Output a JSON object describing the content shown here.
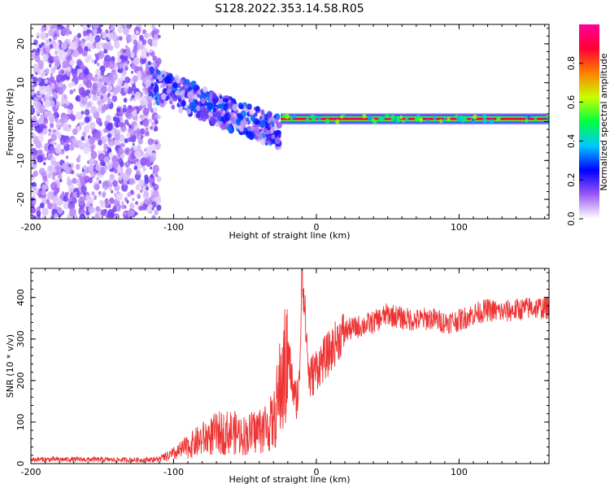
{
  "title": "S128.2022.353.14.58.R05",
  "chart_data": [
    {
      "type": "heatmap",
      "xlabel": "Height of straight line (km)",
      "ylabel": "Frequency (Hz)",
      "xlim": [
        -200,
        163
      ],
      "ylim": [
        -25,
        25
      ],
      "xticks": [
        -200,
        -100,
        0,
        100
      ],
      "xtick_labels": [
        "-200",
        "-100",
        "0",
        "100"
      ],
      "yticks": [
        -20,
        -10,
        0,
        10,
        20
      ],
      "ytick_labels": [
        "-20",
        "-10",
        "0",
        "10",
        "20"
      ],
      "colorbar": {
        "label": "Normalized spectral amplitude",
        "range": [
          0,
          1
        ],
        "ticks": [
          0.0,
          0.2,
          0.4,
          0.6,
          0.8
        ],
        "tick_labels": [
          "0.0",
          "0.2",
          "0.4",
          "0.6",
          "0.8"
        ],
        "colors": [
          "#ffffff",
          "#9b59f5",
          "#0000ff",
          "#00c8ff",
          "#00ff40",
          "#c8ff00",
          "#ff8000",
          "#ff0033",
          "#ff0099"
        ]
      },
      "regions": [
        {
          "x_range": [
            -200,
            -110
          ],
          "description": "broadband noise",
          "max_amplitude": 0.15
        },
        {
          "x_range": [
            -118,
            -25
          ],
          "freq_start_hz": 10,
          "freq_end_hz": -3,
          "max_amplitude": 0.3
        },
        {
          "x_range": [
            -25,
            163
          ],
          "freq_hz": 0.7,
          "max_amplitude": 0.9
        }
      ],
      "grid": false
    },
    {
      "type": "line",
      "xlabel": "Height of straight line (km)",
      "ylabel": "SNR (10 * v/v)",
      "xlim": [
        -200,
        163
      ],
      "ylim": [
        0,
        470
      ],
      "xticks": [
        -200,
        -100,
        0,
        100
      ],
      "xtick_labels": [
        "-200",
        "-100",
        "0",
        "100"
      ],
      "yticks": [
        0,
        100,
        200,
        300,
        400
      ],
      "ytick_labels": [
        "0",
        "100",
        "200",
        "300",
        "400"
      ],
      "color": "#ee3333",
      "x": [
        -200,
        -180,
        -160,
        -140,
        -120,
        -110,
        -100,
        -90,
        -80,
        -70,
        -60,
        -50,
        -40,
        -30,
        -25,
        -20,
        -15,
        -12,
        -10,
        -5,
        0,
        5,
        10,
        15,
        20,
        30,
        40,
        50,
        60,
        70,
        80,
        90,
        100,
        110,
        120,
        130,
        140,
        150,
        163
      ],
      "y": [
        10,
        10,
        10,
        9,
        9,
        12,
        25,
        45,
        65,
        80,
        85,
        75,
        90,
        110,
        210,
        270,
        150,
        180,
        470,
        200,
        230,
        250,
        270,
        300,
        320,
        330,
        340,
        360,
        350,
        345,
        350,
        340,
        345,
        360,
        370,
        365,
        370,
        375,
        375
      ],
      "grid": false
    }
  ]
}
